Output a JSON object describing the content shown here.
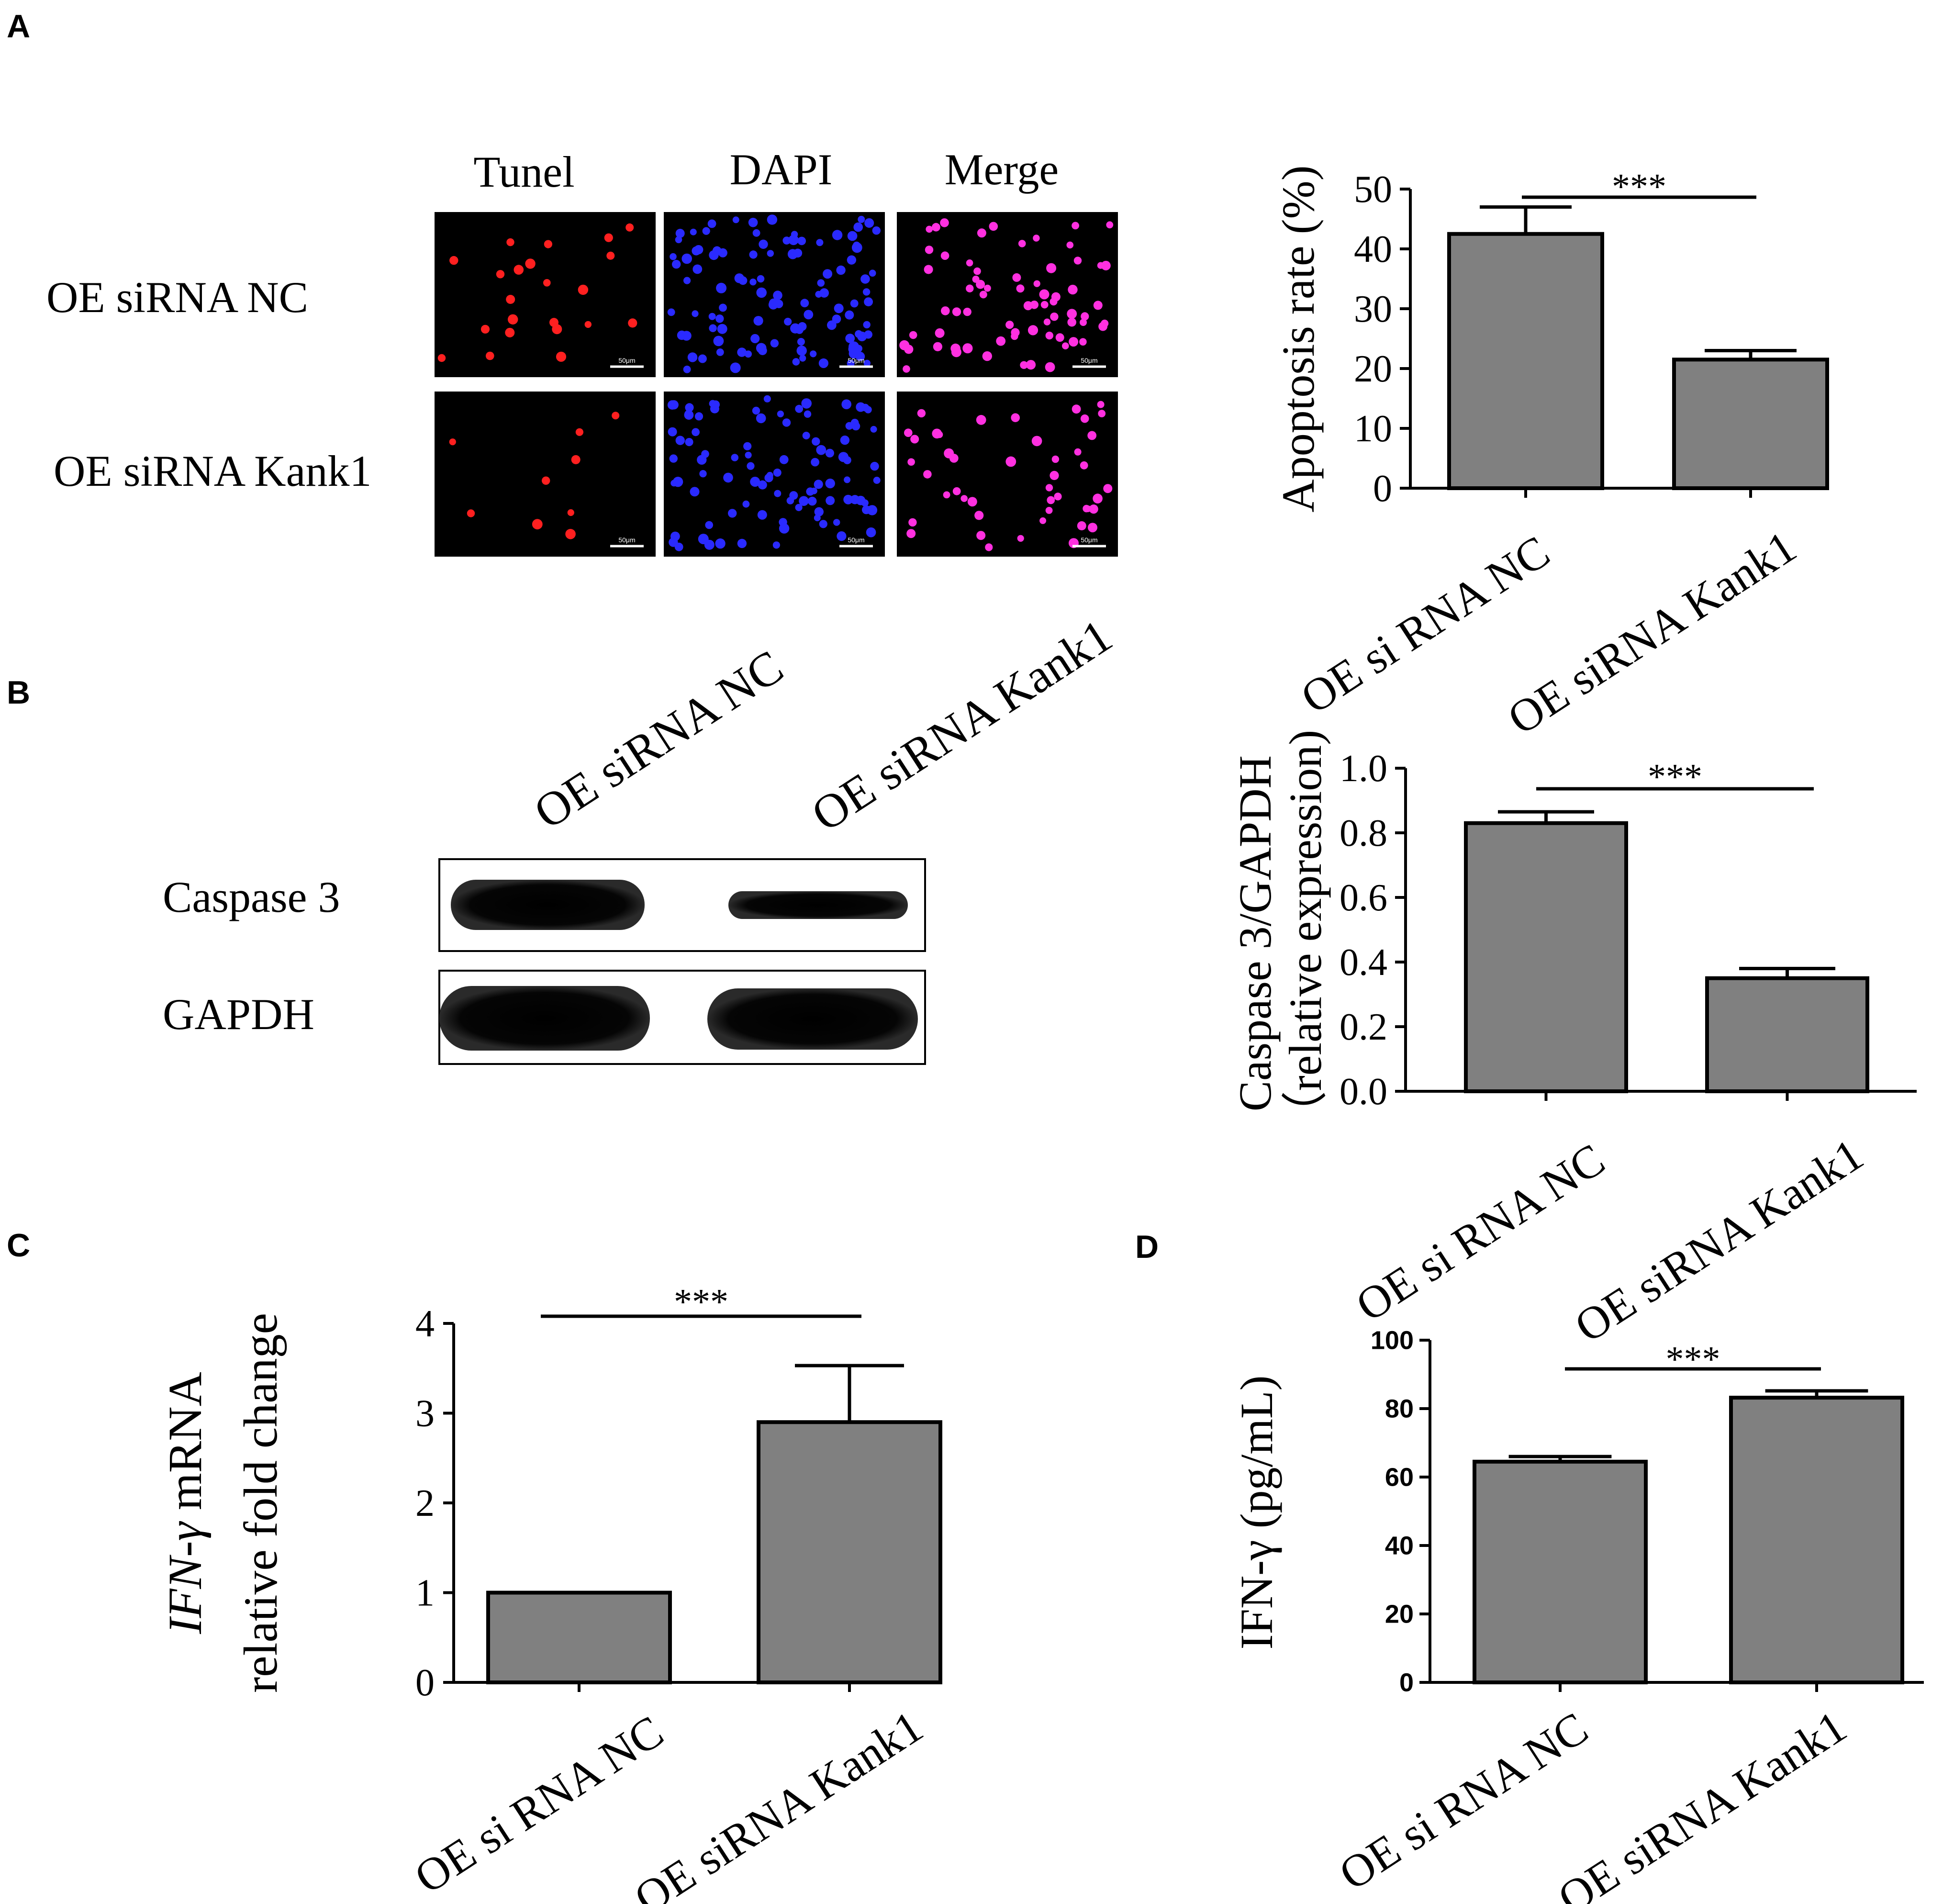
{
  "panels": {
    "A": {
      "letter": "A",
      "col_headers": [
        "Tunel",
        "DAPI",
        "Merge"
      ],
      "row_labels": [
        "OE siRNA NC",
        "OE siRNA Kank1"
      ],
      "scale_bar_label": "50μm",
      "stain_colors": [
        "#ff2020",
        "#2a2aff",
        "#ff30e0"
      ]
    },
    "B": {
      "letter": "B",
      "lane_labels": [
        "OE siRNA NC",
        "OE siRNA Kank1"
      ],
      "blot_labels": [
        "Caspase 3",
        "GAPDH"
      ]
    },
    "C": {
      "letter": "C"
    },
    "D": {
      "letter": "D"
    }
  },
  "chart_data": [
    {
      "panel": "A",
      "type": "bar",
      "categories": [
        "OE si RNA NC",
        "OE siRNA Kank1"
      ],
      "values": [
        42.5,
        21.5
      ],
      "errors": [
        4.5,
        1.5
      ],
      "ylabel": "Apoptosis rate (%)",
      "ylim": [
        0,
        50
      ],
      "yticks": [
        "0",
        "10",
        "20",
        "30",
        "40",
        "50"
      ],
      "significance": "***"
    },
    {
      "panel": "B",
      "type": "bar",
      "categories": [
        "OE si RNA NC",
        "OE siRNA Kank1"
      ],
      "values": [
        0.83,
        0.35
      ],
      "errors": [
        0.035,
        0.03
      ],
      "ylabel": "Caspase 3/GAPDH",
      "ylabel2": "（relative expression)",
      "ylim": [
        0,
        1.0
      ],
      "yticks": [
        "0.0",
        "0.2",
        "0.4",
        "0.6",
        "0.8",
        "1.0"
      ],
      "significance": "***"
    },
    {
      "panel": "C",
      "type": "bar",
      "categories": [
        "OE si RNA NC",
        "OE siRNA Kank1"
      ],
      "values": [
        1.0,
        2.9
      ],
      "errors": [
        0,
        0.63
      ],
      "ylabel_gene": "IFN-γ",
      "ylabel": " mRNA",
      "ylabel2": "relative fold change",
      "ylim": [
        0,
        4
      ],
      "yticks": [
        "0",
        "1",
        "2",
        "3",
        "4"
      ],
      "significance": "***"
    },
    {
      "panel": "D",
      "type": "bar",
      "categories": [
        "OE si RNA NC",
        "OE siRNA Kank1"
      ],
      "values": [
        64.5,
        83.2
      ],
      "errors": [
        1.5,
        2.0
      ],
      "ylabel": "IFN-γ  (pg/mL)",
      "ylim": [
        0,
        100
      ],
      "yticks": [
        "0",
        "20",
        "40",
        "60",
        "80",
        "100"
      ],
      "significance": "***"
    }
  ]
}
